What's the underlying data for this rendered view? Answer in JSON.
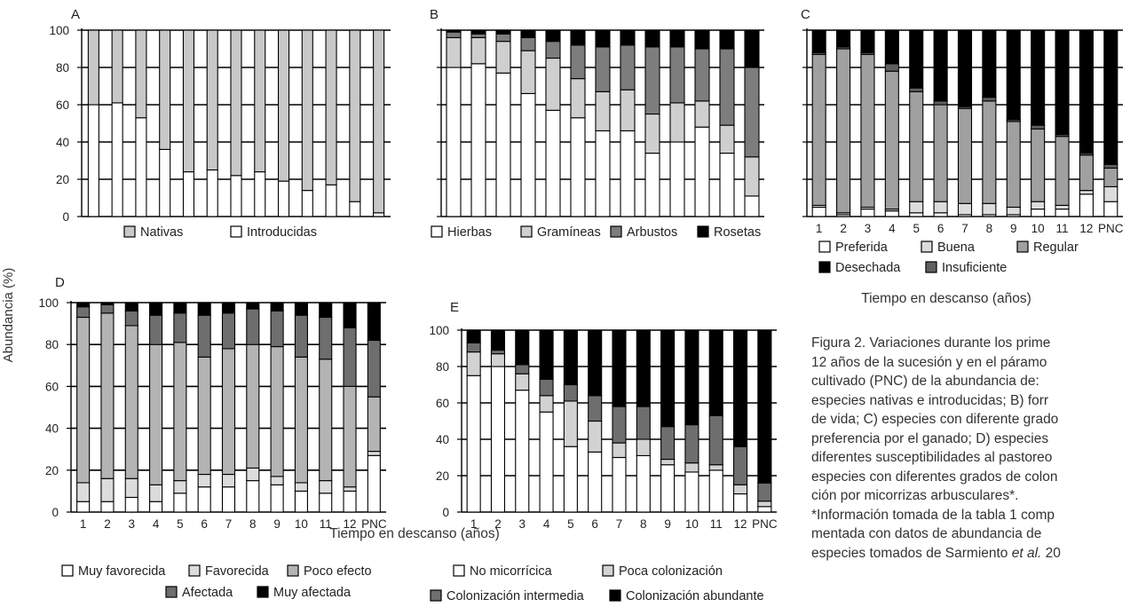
{
  "figure": {
    "ylabel": "Abundancia (%)",
    "xlabel_bottom": "Tiempo en descanso (años)",
    "xlabel_C": "Tiempo en descanso (años)"
  },
  "caption": {
    "lines": [
      "Figura 2. Variaciones durante los prime",
      "12 años de la sucesión y en el páramo",
      "cultivado (PNC) de la abundancia de:",
      "especies nativas e introducidas; B) forr",
      "de vida; C) especies con diferente grado",
      "preferencia por el ganado; D) especies",
      "diferentes susceptibilidades al pastoreo",
      "especies con diferentes grados de colon",
      "ción por micorrizas arbusculares*.",
      "*Información tomada de la tabla 1 comp",
      "mentada con datos de abundancia de"
    ],
    "last_line_prefix": "especies tomados de Sarmiento ",
    "last_line_italic": "et al.",
    "last_line_suffix": " 20"
  },
  "chart_data": [
    {
      "panel": "A",
      "type": "bar",
      "stacked": true,
      "categories": [
        "1",
        "2",
        "3",
        "4",
        "5",
        "6",
        "7",
        "8",
        "9",
        "10",
        "11",
        "12",
        "PNC"
      ],
      "show_xticks": false,
      "ylim": [
        0,
        100
      ],
      "yticks": [
        0,
        20,
        40,
        60,
        80,
        100
      ],
      "series": [
        {
          "name": "Introducidas",
          "color": "#ffffff",
          "values": [
            60,
            61,
            53,
            36,
            24,
            25,
            22,
            24,
            19,
            14,
            17,
            8,
            2
          ]
        },
        {
          "name": "Nativas",
          "color": "#c8c8c8",
          "values": [
            40,
            39,
            47,
            64,
            76,
            75,
            78,
            76,
            81,
            86,
            83,
            92,
            98
          ]
        }
      ],
      "legend": [
        "Nativas",
        "Introducidas"
      ]
    },
    {
      "panel": "B",
      "type": "bar",
      "stacked": true,
      "categories": [
        "1",
        "2",
        "3",
        "4",
        "5",
        "6",
        "7",
        "8",
        "9",
        "10",
        "11",
        "12",
        "PNC"
      ],
      "show_xticks": false,
      "ylim": [
        0,
        100
      ],
      "yticks": [
        0,
        20,
        40,
        60,
        80,
        100
      ],
      "series": [
        {
          "name": "Hierbas",
          "color": "#ffffff",
          "values": [
            80,
            82,
            77,
            66,
            57,
            53,
            46,
            46,
            34,
            40,
            48,
            34,
            11
          ]
        },
        {
          "name": "Gramíneas",
          "color": "#cfcfcf",
          "values": [
            16,
            14,
            17,
            23,
            28,
            21,
            21,
            22,
            21,
            21,
            14,
            15,
            21
          ]
        },
        {
          "name": "Arbustos",
          "color": "#7d7d7d",
          "values": [
            3,
            2,
            4,
            7,
            9,
            18,
            24,
            24,
            36,
            30,
            28,
            41,
            48
          ]
        },
        {
          "name": "Rosetas",
          "color": "#000000",
          "values": [
            1,
            2,
            2,
            4,
            6,
            8,
            9,
            8,
            9,
            9,
            10,
            10,
            20
          ]
        }
      ],
      "legend": [
        "Hierbas",
        "Gramíneas",
        "Arbustos",
        "Rosetas"
      ]
    },
    {
      "panel": "C",
      "type": "bar",
      "stacked": true,
      "categories": [
        "1",
        "2",
        "3",
        "4",
        "5",
        "6",
        "7",
        "8",
        "9",
        "10",
        "11",
        "12",
        "PNC"
      ],
      "show_xticks": true,
      "ylim": [
        0,
        100
      ],
      "yticks": [
        0,
        20,
        40,
        60,
        80,
        100
      ],
      "series": [
        {
          "name": "Preferida",
          "color": "#ffffff",
          "values": [
            5,
            1,
            4,
            3,
            2,
            2,
            1,
            1,
            1,
            4,
            4,
            12,
            8
          ]
        },
        {
          "name": "Buena",
          "color": "#dcdcdc",
          "values": [
            1,
            1,
            1,
            1,
            6,
            6,
            6,
            6,
            4,
            4,
            2,
            2,
            8
          ]
        },
        {
          "name": "Regular",
          "color": "#a0a0a0",
          "values": [
            81,
            88,
            82,
            74,
            59,
            52,
            51,
            55,
            46,
            39,
            37,
            19,
            10
          ]
        },
        {
          "name": "Insuficiente",
          "color": "#606060",
          "values": [
            1,
            1,
            1,
            4,
            2,
            2,
            1,
            2,
            1,
            2,
            1,
            1,
            2
          ]
        },
        {
          "name": "Desechada",
          "color": "#000000",
          "values": [
            12,
            9,
            12,
            18,
            31,
            38,
            41,
            36,
            48,
            51,
            56,
            66,
            72
          ]
        }
      ],
      "legend": [
        "Preferida",
        "Buena",
        "Regular",
        "Desechada",
        "Insuficiente"
      ]
    },
    {
      "panel": "D",
      "type": "bar",
      "stacked": true,
      "categories": [
        "1",
        "2",
        "3",
        "4",
        "5",
        "6",
        "7",
        "8",
        "9",
        "10",
        "11",
        "12",
        "PNC"
      ],
      "show_xticks": true,
      "ylim": [
        0,
        100
      ],
      "yticks": [
        0,
        20,
        40,
        60,
        80,
        100
      ],
      "series": [
        {
          "name": "Muy favorecida",
          "color": "#ffffff",
          "values": [
            5,
            5,
            7,
            5,
            9,
            12,
            12,
            15,
            13,
            10,
            9,
            10,
            27
          ]
        },
        {
          "name": "Favorecida",
          "color": "#dcdcdc",
          "values": [
            9,
            11,
            9,
            8,
            6,
            6,
            6,
            6,
            4,
            4,
            6,
            2,
            2
          ]
        },
        {
          "name": "Poco efecto",
          "color": "#b4b4b4",
          "values": [
            79,
            79,
            73,
            67,
            66,
            56,
            60,
            59,
            62,
            60,
            58,
            48,
            26
          ]
        },
        {
          "name": "Afectada",
          "color": "#6e6e6e",
          "values": [
            5,
            4,
            7,
            14,
            14,
            20,
            17,
            17,
            17,
            20,
            20,
            28,
            27
          ]
        },
        {
          "name": "Muy afectada",
          "color": "#000000",
          "values": [
            2,
            1,
            4,
            6,
            5,
            6,
            5,
            3,
            4,
            6,
            7,
            12,
            18
          ]
        }
      ],
      "legend": [
        "Muy favorecida",
        "Favorecida",
        "Poco efecto",
        "Afectada",
        "Muy afectada"
      ]
    },
    {
      "panel": "E",
      "type": "bar",
      "stacked": true,
      "categories": [
        "1",
        "2",
        "3",
        "4",
        "5",
        "6",
        "7",
        "8",
        "9",
        "10",
        "11",
        "12",
        "PNC"
      ],
      "show_xticks": true,
      "ylim": [
        0,
        100
      ],
      "yticks": [
        0,
        20,
        40,
        60,
        80,
        100
      ],
      "series": [
        {
          "name": "No micorrícica",
          "color": "#ffffff",
          "values": [
            75,
            80,
            67,
            55,
            36,
            33,
            30,
            31,
            26,
            22,
            23,
            10,
            3
          ]
        },
        {
          "name": "Poca colonización",
          "color": "#d2d2d2",
          "values": [
            13,
            7,
            9,
            9,
            25,
            17,
            8,
            9,
            3,
            5,
            3,
            5,
            3
          ]
        },
        {
          "name": "Colonización intermedia",
          "color": "#6e6e6e",
          "values": [
            5,
            2,
            5,
            9,
            9,
            14,
            20,
            18,
            18,
            21,
            27,
            21,
            10
          ]
        },
        {
          "name": "Colonización abundante",
          "color": "#000000",
          "values": [
            7,
            11,
            19,
            27,
            30,
            36,
            42,
            42,
            53,
            52,
            47,
            64,
            84
          ]
        }
      ],
      "legend": [
        "No micorrícica",
        "Poca colonización",
        "Colonización intermedia",
        "Colonización abundante"
      ]
    }
  ]
}
